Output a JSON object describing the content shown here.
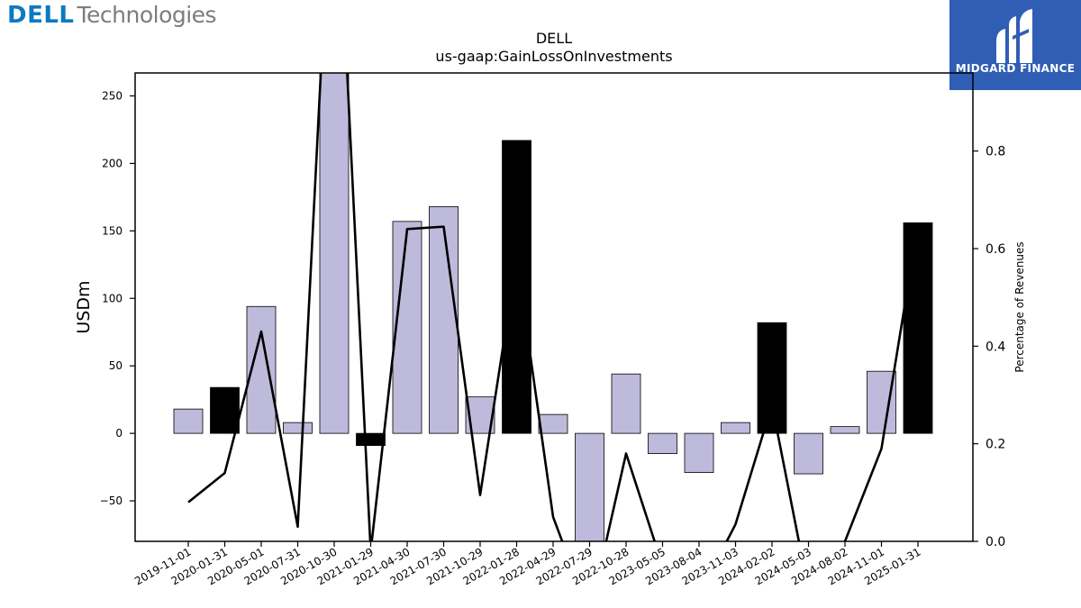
{
  "branding": {
    "left_logo_a": "DELL",
    "left_logo_b": "Technologies",
    "right_logo": "MIDGARD FINANCE"
  },
  "chart_data": {
    "type": "bar",
    "title": "DELL",
    "subtitle": "us-gaap:GainLossOnInvestments",
    "ylabel": "USDm",
    "y2label": "Percentage of Revenues",
    "categories": [
      "2019-11-01",
      "2020-01-31",
      "2020-05-01",
      "2020-07-31",
      "2020-10-30",
      "2021-01-29",
      "2021-04-30",
      "2021-07-30",
      "2021-10-29",
      "2022-01-28",
      "2022-04-29",
      "2022-07-29",
      "2022-10-28",
      "2023-05-05",
      "2023-08-04",
      "2023-11-03",
      "2024-02-02",
      "2024-05-03",
      "2024-08-02",
      "2024-11-01",
      "2025-01-31"
    ],
    "values": [
      18,
      34,
      94,
      8,
      270,
      -9,
      157,
      168,
      27,
      217,
      14,
      -80,
      44,
      -15,
      -29,
      8,
      82,
      -30,
      5,
      46,
      156
    ],
    "highlight": [
      false,
      true,
      false,
      false,
      false,
      true,
      false,
      false,
      false,
      true,
      false,
      false,
      false,
      false,
      false,
      false,
      true,
      false,
      false,
      false,
      true
    ],
    "pct_of_revenues": [
      0.08,
      0.14,
      0.43,
      0.03,
      1.5,
      -0.02,
      0.64,
      0.645,
      0.095,
      0.58,
      0.05,
      -0.15,
      0.18,
      -0.05,
      -0.11,
      0.035,
      0.28,
      -0.1,
      0.0,
      0.19,
      0.65
    ],
    "ylim": [
      -80,
      267
    ],
    "y2lim": [
      0,
      0.96
    ],
    "yticks": [
      -50,
      0,
      50,
      100,
      150,
      200,
      250
    ],
    "y2ticks": [
      0.0,
      0.2,
      0.4,
      0.6,
      0.8
    ],
    "colors": {
      "bar": "#bebadb",
      "bar_highlight": "#000000",
      "line": "#000000"
    },
    "grid": false,
    "legend": "none"
  }
}
